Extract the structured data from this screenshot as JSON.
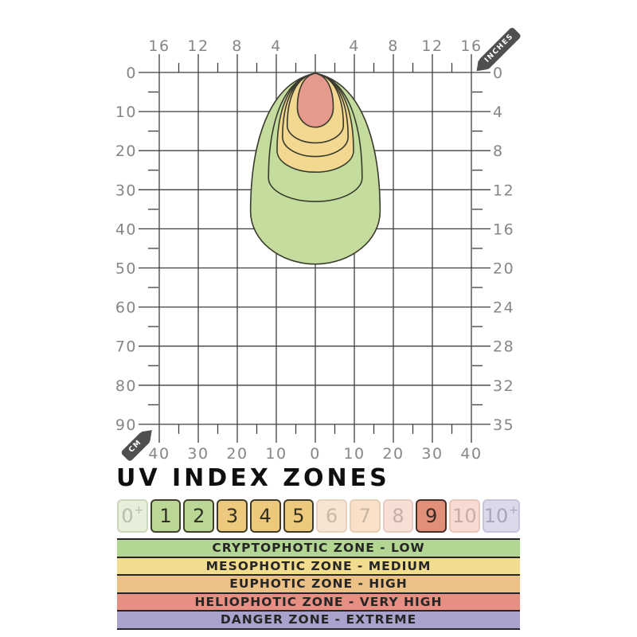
{
  "title": "UV INDEX ZONES",
  "chart_data": {
    "type": "area",
    "subtype": "nested beam contours: UV irradiance zones vs distance from lamp",
    "inches_tag": "INCHES",
    "cm_tag": "CM",
    "grid_color": "#3f3f3f",
    "label_color": "#868686",
    "ring_stroke": "#3a3a2e",
    "axes": {
      "top": {
        "unit": "inches",
        "labels": [
          "16",
          "12",
          "8",
          "4",
          "4",
          "8",
          "12",
          "16"
        ]
      },
      "bottom": {
        "unit": "cm",
        "labels": [
          "40",
          "30",
          "20",
          "10",
          "0",
          "10",
          "20",
          "30",
          "40"
        ]
      },
      "left": {
        "unit": "cm",
        "labels": [
          "0",
          "10",
          "20",
          "30",
          "40",
          "50",
          "60",
          "70",
          "80",
          "90"
        ]
      },
      "right": {
        "unit": "inches",
        "labels": [
          "0",
          "4",
          "8",
          "12",
          "16",
          "20",
          "24",
          "28",
          "32",
          "35"
        ]
      }
    },
    "rings": [
      {
        "name": "outer-green-low-zone",
        "color": "#c4dd9e",
        "depth_cm": 49,
        "half_width_cm": 16.6,
        "widest_at_cm": 35.5
      },
      {
        "name": "inner-green-low-zone",
        "color": "#c4dd9e",
        "depth_cm": 33,
        "half_width_cm": 12.0,
        "widest_at_cm": 27
      },
      {
        "name": "outer-yellow-medium-zone",
        "color": "#f2d891",
        "depth_cm": 25.5,
        "half_width_cm": 9.8,
        "widest_at_cm": 20
      },
      {
        "name": "middle-yellow-medium-zone",
        "color": "#f2d891",
        "depth_cm": 21.5,
        "half_width_cm": 8.4,
        "widest_at_cm": 16.5
      },
      {
        "name": "inner-yellow-medium-zone",
        "color": "#f2d891",
        "depth_cm": 18,
        "half_width_cm": 7.2,
        "widest_at_cm": 13.5
      },
      {
        "name": "red-high-core",
        "color": "#e69a8e",
        "depth_cm": 14,
        "half_width_cm": 4.6,
        "widest_at_cm": 9
      }
    ]
  },
  "uv_scale": {
    "cells": [
      {
        "label": "0",
        "sup": "+",
        "active": false,
        "fill": "#e7efdb",
        "border": "#ccd6bf",
        "text": "#b5bfa9"
      },
      {
        "label": "1",
        "active": true,
        "fill": "#bbd795",
        "border": "#40402c",
        "text": "#303024"
      },
      {
        "label": "2",
        "active": true,
        "fill": "#bbd795",
        "border": "#40402c",
        "text": "#303024"
      },
      {
        "label": "3",
        "active": true,
        "fill": "#edc97e",
        "border": "#403b28",
        "text": "#32301f"
      },
      {
        "label": "4",
        "active": true,
        "fill": "#edc97e",
        "border": "#403b28",
        "text": "#32301f"
      },
      {
        "label": "5",
        "active": true,
        "fill": "#edc97e",
        "border": "#403b28",
        "text": "#32301f"
      },
      {
        "label": "6",
        "active": false,
        "fill": "#f8e5d1",
        "border": "#e6d2be",
        "text": "#c8b8a6"
      },
      {
        "label": "7",
        "active": false,
        "fill": "#f8e0c9",
        "border": "#e7cfb4",
        "text": "#cab4a0"
      },
      {
        "label": "8",
        "active": false,
        "fill": "#f7dfd5",
        "border": "#e7cbc0",
        "text": "#c9aea6"
      },
      {
        "label": "9",
        "active": true,
        "fill": "#e08f78",
        "border": "#472f26",
        "text": "#3c2920"
      },
      {
        "label": "10",
        "active": false,
        "fill": "#f7dad2",
        "border": "#e8c7bd",
        "text": "#cbaba3"
      },
      {
        "label": "10",
        "sup": "+",
        "active": false,
        "fill": "#dcd9ea",
        "border": "#c7c3d9",
        "text": "#a9a5bf"
      }
    ]
  },
  "zones": [
    {
      "label": "CRYPTOPHOTIC ZONE - LOW",
      "color": "#b3d693"
    },
    {
      "label": "MESOPHOTIC ZONE - MEDIUM",
      "color": "#f2dc8f"
    },
    {
      "label": "EUPHOTIC ZONE - HIGH",
      "color": "#ecc186"
    },
    {
      "label": "HELIOPHOTIC ZONE - VERY HIGH",
      "color": "#e78f82"
    },
    {
      "label": "DANGER ZONE - EXTREME",
      "color": "#a9a2cc"
    }
  ]
}
